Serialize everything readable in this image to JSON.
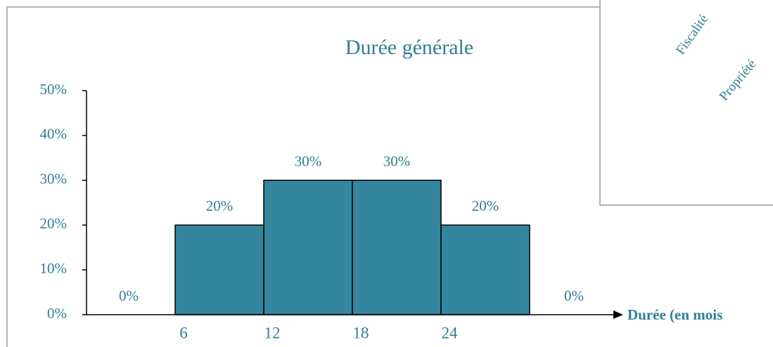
{
  "chart_data": {
    "type": "bar",
    "title": "Durée générale",
    "x_label": "Durée (en mois",
    "categories": [
      null,
      "6",
      "12",
      "18",
      "24",
      null
    ],
    "values": [
      0,
      20,
      30,
      30,
      20,
      0
    ],
    "value_labels": [
      "0%",
      "20%",
      "30%",
      "30%",
      "20%",
      "0%"
    ],
    "color": "#33869d",
    "ylim": [
      0,
      50
    ],
    "yticks": [
      {
        "value": 0,
        "label": "0%"
      },
      {
        "value": 10,
        "label": "10%"
      },
      {
        "value": 20,
        "label": "20%"
      },
      {
        "value": 30,
        "label": "30%"
      },
      {
        "value": 40,
        "label": "40%"
      },
      {
        "value": 50,
        "label": "50%"
      }
    ]
  },
  "background_chart": {
    "labels": [
      "Fiscalité",
      "Propriété"
    ]
  }
}
